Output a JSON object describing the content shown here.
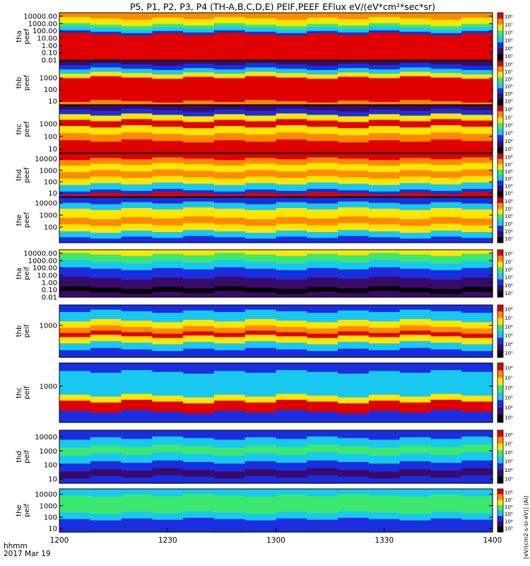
{
  "title": "P5, P1, P2, P3, P4 (TH-A,B,C,D,E) PEIF,PEEF EFlux eV/(eV*cm²*sec*sr)",
  "xaxis": {
    "label_line1": "hhmm",
    "label_line2": "2017 Mar 19",
    "ticks": [
      "1200",
      "1230",
      "1300",
      "1330",
      "1400"
    ]
  },
  "colorbar_label": "[eV/(cm2-s-sr-eV)] (Al)",
  "colorbar_ticks": [
    "10³",
    "10⁴",
    "10⁵",
    "10⁶",
    "10⁷",
    "10⁸"
  ],
  "colors": {
    "dark": "#000000",
    "purple": "#3a0a6a",
    "blue": "#1a2ee0",
    "cyan": "#18c8f0",
    "green": "#3ce870",
    "yellow": "#ffe600",
    "orange": "#ff8a00",
    "red": "#e00000"
  },
  "chart_data": {
    "type": "heatmap",
    "x_range": [
      "1200",
      "1400"
    ],
    "panels": [
      {
        "name": "tha peef",
        "label_top": "tha",
        "label_bottom": "peef",
        "yticks": [
          "10000.00",
          "1000.00",
          "100.00",
          "10.00",
          "1.00",
          "0.10",
          "0.01"
        ],
        "yrange": [
          0.01,
          30000
        ],
        "log": true
      },
      {
        "name": "thb peef",
        "label_top": "thb",
        "label_bottom": "peef",
        "yticks": [
          "1000",
          "100",
          "10"
        ],
        "yrange": [
          5,
          30000
        ],
        "log": true
      },
      {
        "name": "thc peef",
        "label_top": "thc",
        "label_bottom": "peef",
        "yticks": [
          "1000",
          "100",
          "10"
        ],
        "yrange": [
          5,
          30000
        ],
        "log": true
      },
      {
        "name": "thd peef",
        "label_top": "thd",
        "label_bottom": "peef",
        "yticks": [
          "10000",
          "1000",
          "100",
          "10"
        ],
        "yrange": [
          5,
          30000
        ],
        "log": true
      },
      {
        "name": "the peef",
        "label_top": "the",
        "label_bottom": "peef",
        "yticks": [
          "10000",
          "1000",
          "100"
        ],
        "yrange": [
          5,
          30000
        ],
        "log": true
      },
      {
        "name": "tha peif",
        "label_top": "tha",
        "label_bottom": "peif",
        "yticks": [
          "10000.00",
          "1000.00",
          "100.00",
          "10.00",
          "1.00",
          "0.10",
          "0.01"
        ],
        "yrange": [
          0.01,
          30000
        ],
        "log": true
      },
      {
        "name": "thb peif",
        "label_top": "thb",
        "label_bottom": "peif",
        "yticks": [
          "1000"
        ],
        "yrange": [
          5,
          30000
        ],
        "log": true
      },
      {
        "name": "thc peif",
        "label_top": "thc",
        "label_bottom": "peif",
        "yticks": [
          "1000"
        ],
        "yrange": [
          5,
          30000
        ],
        "log": true
      },
      {
        "name": "thd peif",
        "label_top": "thd",
        "label_bottom": "peif",
        "yticks": [
          "10000",
          "1000",
          "100",
          "10"
        ],
        "yrange": [
          5,
          30000
        ],
        "log": true
      },
      {
        "name": "the peif",
        "label_top": "the",
        "label_bottom": "peif",
        "yticks": [
          "10000",
          "1000",
          "100",
          "10"
        ],
        "yrange": [
          5,
          30000
        ],
        "log": true
      }
    ],
    "colorbar": {
      "scale": "log",
      "range": [
        "10³",
        "10⁸"
      ]
    }
  }
}
